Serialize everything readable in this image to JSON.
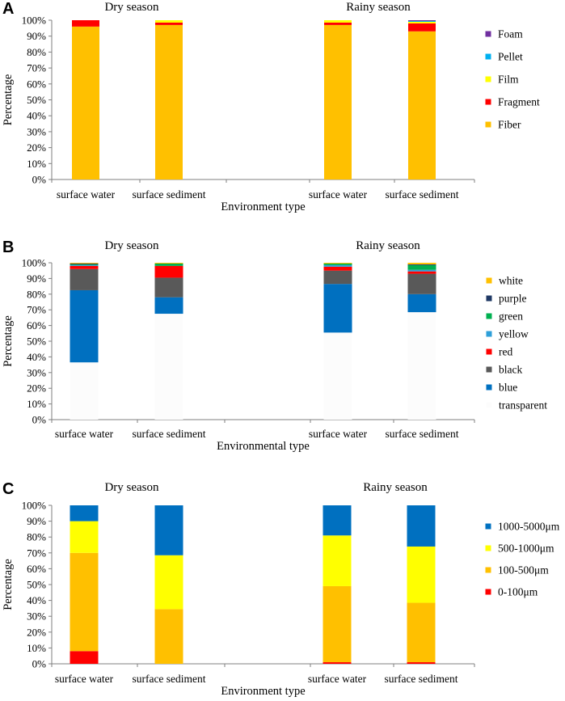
{
  "chart_data": [
    {
      "type": "bar",
      "stacked": true,
      "panel_label": "A",
      "season_labels": [
        "Dry season",
        "Rainy season"
      ],
      "categories": [
        "surface water",
        "surface sediment",
        "surface water",
        "surface sediment"
      ],
      "xlabel": "Environment type",
      "ylabel": "Percentage",
      "ylim": [
        0,
        100
      ],
      "yticks": [
        "0%",
        "10%",
        "20%",
        "30%",
        "40%",
        "50%",
        "60%",
        "70%",
        "80%",
        "90%",
        "100%"
      ],
      "legend_position": "right",
      "series": [
        {
          "name": "Fiber",
          "color": "#ffc000",
          "values": [
            96,
            97,
            97,
            93
          ]
        },
        {
          "name": "Fragment",
          "color": "#ff0000",
          "values": [
            4,
            1.5,
            1.5,
            5
          ]
        },
        {
          "name": "Film",
          "color": "#ffff00",
          "values": [
            0,
            1.5,
            1.5,
            1
          ]
        },
        {
          "name": "Pellet",
          "color": "#00b0f0",
          "values": [
            0,
            0,
            0,
            0.5
          ]
        },
        {
          "name": "Foam",
          "color": "#7030a0",
          "values": [
            0,
            0,
            0,
            0.5
          ]
        }
      ]
    },
    {
      "type": "bar",
      "stacked": true,
      "panel_label": "B",
      "season_labels": [
        "Dry season",
        "Rainy season"
      ],
      "categories": [
        "surface water",
        "surface sediment",
        "surface water",
        "surface sediment"
      ],
      "xlabel": "Environmental type",
      "ylabel": "Percentage",
      "ylim": [
        0,
        100
      ],
      "yticks": [
        "0%",
        "10%",
        "20%",
        "30%",
        "40%",
        "50%",
        "60%",
        "70%",
        "80%",
        "90%",
        "100%"
      ],
      "legend_position": "right",
      "series": [
        {
          "name": "transparent",
          "color": "#fcfcfc",
          "values": [
            36.5,
            67.5,
            55.5,
            68.5
          ]
        },
        {
          "name": "blue",
          "color": "#0070c0",
          "values": [
            46,
            10.5,
            31,
            11.5
          ]
        },
        {
          "name": "black",
          "color": "#595959",
          "values": [
            13.5,
            12.5,
            8.5,
            13
          ]
        },
        {
          "name": "red",
          "color": "#ff0000",
          "values": [
            2,
            7.5,
            2.5,
            1.5
          ]
        },
        {
          "name": "yellow",
          "color": "#2e9fd9",
          "values": [
            0.5,
            0,
            1,
            1
          ]
        },
        {
          "name": "green",
          "color": "#00b050",
          "values": [
            0.5,
            1.5,
            1,
            3
          ]
        },
        {
          "name": "purple",
          "color": "#1f3864",
          "values": [
            0.5,
            0,
            0,
            0.5
          ]
        },
        {
          "name": "white",
          "color": "#ffc000",
          "values": [
            0.5,
            0.5,
            0.5,
            1
          ]
        }
      ]
    },
    {
      "type": "bar",
      "stacked": true,
      "panel_label": "C",
      "season_labels": [
        "Dry season",
        "Rainy season"
      ],
      "categories": [
        "surface water",
        "surface sediment",
        "surface water",
        "surface sediment"
      ],
      "xlabel": "Environment type",
      "ylabel": "Percentage",
      "ylim": [
        0,
        100
      ],
      "yticks": [
        "0%",
        "10%",
        "20%",
        "30%",
        "40%",
        "50%",
        "60%",
        "70%",
        "80%",
        "90%",
        "100%"
      ],
      "legend_position": "right",
      "series": [
        {
          "name": "0-100μm",
          "color": "#ff0000",
          "values": [
            8,
            0,
            1,
            1
          ]
        },
        {
          "name": "100-500μm",
          "color": "#ffc000",
          "values": [
            62,
            34.5,
            48,
            37.5
          ]
        },
        {
          "name": "500-1000μm",
          "color": "#ffff00",
          "values": [
            20,
            34,
            32,
            35.5
          ]
        },
        {
          "name": "1000-5000μm",
          "color": "#0070c0",
          "values": [
            10,
            31.5,
            19,
            26
          ]
        }
      ]
    }
  ]
}
